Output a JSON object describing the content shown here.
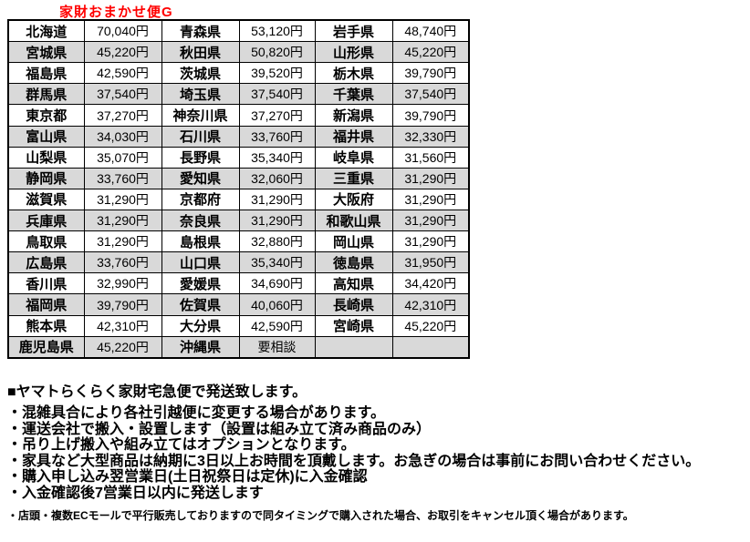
{
  "colors": {
    "title_red": "#ff0000",
    "alt_row_gray": "#d9d9d9",
    "border_black": "#000000"
  },
  "table": {
    "title": "家財おまかせ便G",
    "rows": [
      [
        [
          "北海道",
          "70,040円"
        ],
        [
          "青森県",
          "53,120円"
        ],
        [
          "岩手県",
          "48,740円"
        ]
      ],
      [
        [
          "宮城県",
          "45,220円"
        ],
        [
          "秋田県",
          "50,820円"
        ],
        [
          "山形県",
          "45,220円"
        ]
      ],
      [
        [
          "福島県",
          "42,590円"
        ],
        [
          "茨城県",
          "39,520円"
        ],
        [
          "栃木県",
          "39,790円"
        ]
      ],
      [
        [
          "群馬県",
          "37,540円"
        ],
        [
          "埼玉県",
          "37,540円"
        ],
        [
          "千葉県",
          "37,540円"
        ]
      ],
      [
        [
          "東京都",
          "37,270円"
        ],
        [
          "神奈川県",
          "37,270円"
        ],
        [
          "新潟県",
          "39,790円"
        ]
      ],
      [
        [
          "富山県",
          "34,030円"
        ],
        [
          "石川県",
          "33,760円"
        ],
        [
          "福井県",
          "32,330円"
        ]
      ],
      [
        [
          "山梨県",
          "35,070円"
        ],
        [
          "長野県",
          "35,340円"
        ],
        [
          "岐阜県",
          "31,560円"
        ]
      ],
      [
        [
          "静岡県",
          "33,760円"
        ],
        [
          "愛知県",
          "32,060円"
        ],
        [
          "三重県",
          "31,290円"
        ]
      ],
      [
        [
          "滋賀県",
          "31,290円"
        ],
        [
          "京都府",
          "31,290円"
        ],
        [
          "大阪府",
          "31,290円"
        ]
      ],
      [
        [
          "兵庫県",
          "31,290円"
        ],
        [
          "奈良県",
          "31,290円"
        ],
        [
          "和歌山県",
          "31,290円"
        ]
      ],
      [
        [
          "鳥取県",
          "31,290円"
        ],
        [
          "島根県",
          "32,880円"
        ],
        [
          "岡山県",
          "31,290円"
        ]
      ],
      [
        [
          "広島県",
          "33,760円"
        ],
        [
          "山口県",
          "35,340円"
        ],
        [
          "徳島県",
          "31,950円"
        ]
      ],
      [
        [
          "香川県",
          "32,990円"
        ],
        [
          "愛媛県",
          "34,690円"
        ],
        [
          "高知県",
          "34,420円"
        ]
      ],
      [
        [
          "福岡県",
          "39,790円"
        ],
        [
          "佐賀県",
          "40,060円"
        ],
        [
          "長崎県",
          "42,310円"
        ]
      ],
      [
        [
          "熊本県",
          "42,310円"
        ],
        [
          "大分県",
          "42,590円"
        ],
        [
          "宮崎県",
          "45,220円"
        ]
      ],
      [
        [
          "鹿児島県",
          "45,220円"
        ],
        [
          "沖縄県",
          "要相談"
        ],
        [
          "",
          ""
        ]
      ]
    ]
  },
  "notes": {
    "heading": "■ヤマトらくらく家財宅急便で発送致します。",
    "bullets": [
      "・混雑具合により各社引越便に変更する場合があります。",
      "・運送会社で搬入・設置します（設置は組み立て済み商品のみ）",
      "・吊り上げ搬入や組み立てはオプションとなります。",
      "・家具など大型商品は納期に3日以上お時間を頂戴します。お急ぎの場合は事前にお問い合わせください。",
      "・購入申し込み翌営業日(土日祝祭日は定休)に入金確認",
      "・入金確認後7営業日以内に発送します"
    ],
    "footnote": "・店頭・複数ECモールで平行販売しておりますので同タイミングで購入された場合、お取引をキャンセル頂く場合があります。"
  }
}
